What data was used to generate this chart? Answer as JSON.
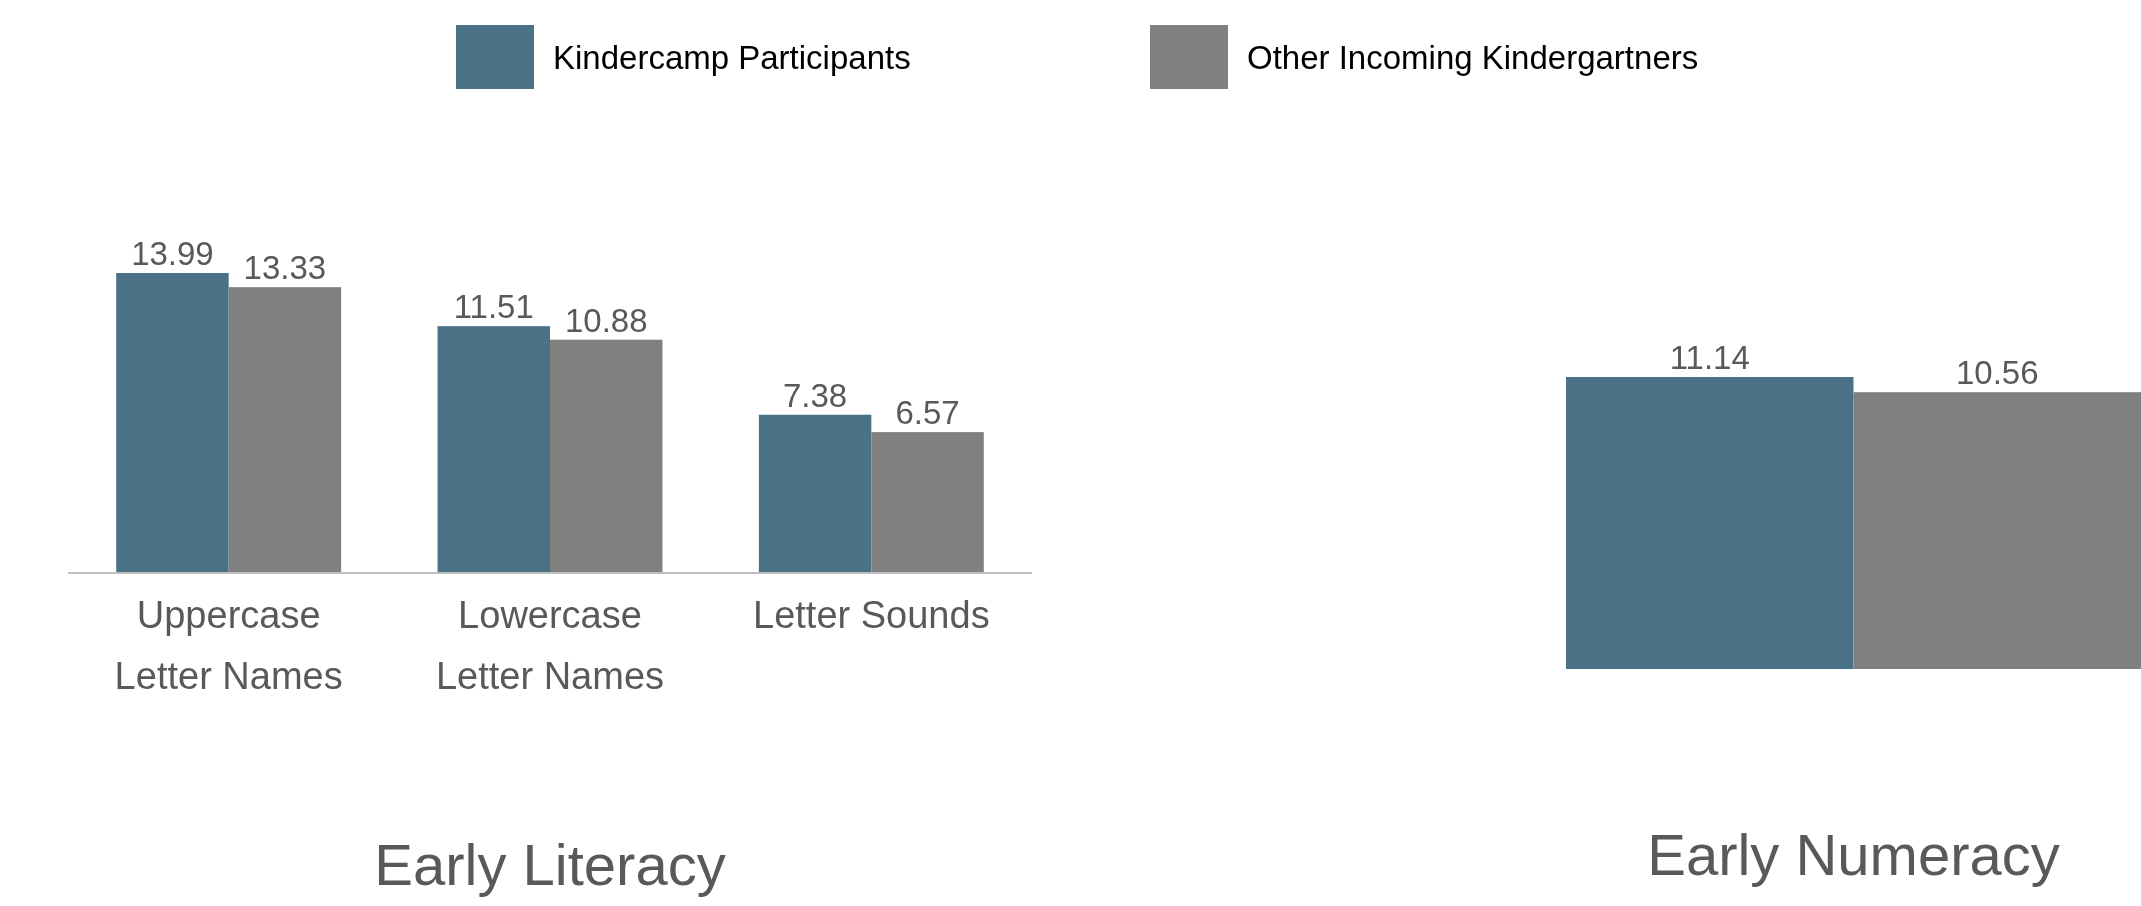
{
  "chart_data": [
    {
      "type": "bar",
      "title": "Early Literacy",
      "categories": [
        "Uppercase Letter Names",
        "Lowercase Letter Names",
        "Letter Sounds"
      ],
      "series": [
        {
          "name": "Kindercamp Participants",
          "color": "#4a7287",
          "values": [
            13.99,
            11.51,
            7.38
          ]
        },
        {
          "name": "Other Incoming Kindergartners",
          "color": "#808080",
          "values": [
            13.33,
            10.88,
            6.57
          ]
        }
      ],
      "data_labels": true,
      "legend": "top"
    },
    {
      "type": "bar",
      "title": "Early Numeracy",
      "categories": [
        null
      ],
      "series": [
        {
          "color": "#4a7287",
          "values": [
            11.14
          ]
        },
        {
          "color": "#808080",
          "values": [
            10.56
          ]
        }
      ],
      "data_labels": true
    }
  ]
}
